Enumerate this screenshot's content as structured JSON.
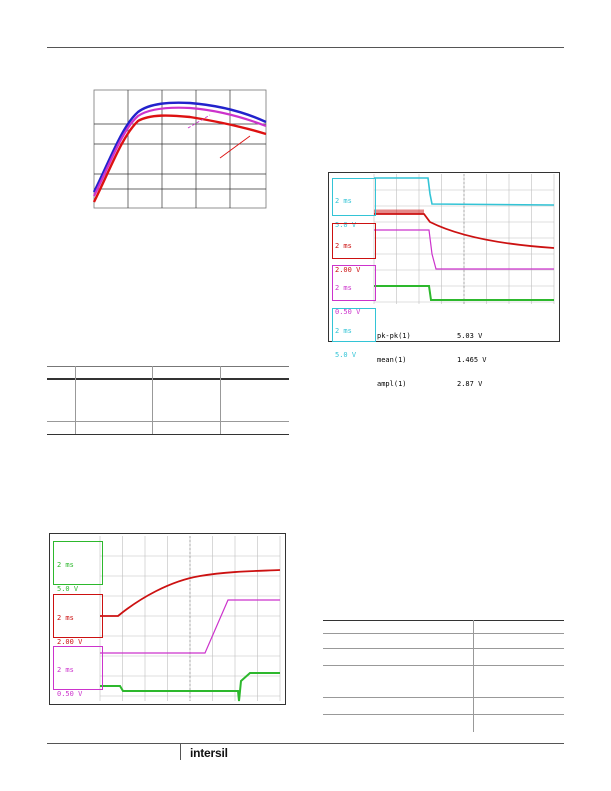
{
  "colors": {
    "header_rule": "#555555",
    "scope_grid": "#bfbfbf",
    "ch1_green": "#2db82d",
    "ch2_red": "#cc1111",
    "ch3_magenta": "#cc33cc",
    "ch4_cyan": "#33c4d6",
    "graph_blue": "#2222cc",
    "graph_red": "#dd1111",
    "graph_magenta": "#cc33cc"
  },
  "scope_top": {
    "channels": [
      {
        "id": "1",
        "lines": [
          "2 ms",
          "5.0 V"
        ],
        "color": "#33c4d6"
      },
      {
        "id": "2",
        "lines": [
          "2 ms",
          "2.00 V"
        ],
        "color": "#cc1111"
      },
      {
        "id": "3",
        "lines": [
          "2 ms",
          "0.50 V"
        ],
        "color": "#cc33cc"
      },
      {
        "id": "4",
        "lines": [
          "2 ms",
          "5.0 V"
        ],
        "color": "#33c4d6"
      }
    ],
    "measurements": [
      {
        "label": "pk-pk(1)",
        "value": "5.03 V"
      },
      {
        "label": "mean(1)",
        "value": "1.465 V"
      },
      {
        "label": "ampl(1)",
        "value": "2.87 V"
      }
    ]
  },
  "scope_bottom": {
    "channels": [
      {
        "id": "4",
        "lines": [
          "2 ms",
          "5.0 V"
        ],
        "color": "#2db82d"
      },
      {
        "id": "2",
        "lines": [
          "2 ms",
          "2.00 V"
        ],
        "color": "#cc1111"
      },
      {
        "id": "3",
        "lines": [
          "2 ms",
          "0.50 V"
        ],
        "color": "#cc33cc"
      }
    ]
  },
  "footer": {
    "logo": "intersil"
  }
}
